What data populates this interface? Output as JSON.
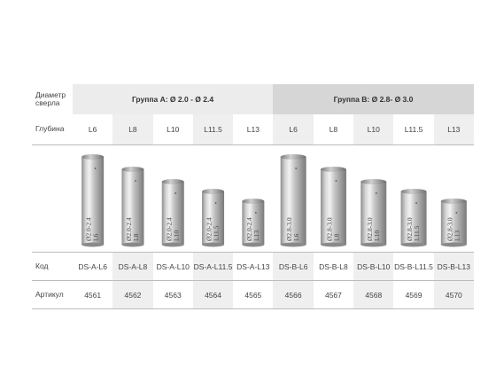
{
  "labels": {
    "diameter": "Диаметр сверла",
    "depth": "Глубина",
    "code": "Код",
    "article": "Артикул"
  },
  "groups": [
    {
      "title": "Группа А: Ø 2.0 - Ø 2.4"
    },
    {
      "title": "Группа В: Ø 2.8- Ø 3.0"
    }
  ],
  "depths": [
    "L6",
    "L8",
    "L10",
    "L11.5",
    "L13",
    "L6",
    "L8",
    "L10",
    "L11.5",
    "L13"
  ],
  "codes": [
    "DS-A-L6",
    "DS-A-L8",
    "DS-A-L10",
    "DS-A-L11.5",
    "DS-A-L13",
    "DS-B-L6",
    "DS-B-L8",
    "DS-B-L10",
    "DS-B-L11.5",
    "DS-B-L13"
  ],
  "articles": [
    "4561",
    "4562",
    "4563",
    "4564",
    "4565",
    "4566",
    "4567",
    "4568",
    "4569",
    "4570"
  ],
  "engravings": [
    {
      "d": "Ø2.0-2.4",
      "l": "L6"
    },
    {
      "d": "Ø2.0-2.4",
      "l": "L8"
    },
    {
      "d": "Ø2.0-2.4",
      "l": "L10"
    },
    {
      "d": "Ø2.0-2.4",
      "l": "L11.5"
    },
    {
      "d": "Ø2.0-2.4",
      "l": "L13"
    },
    {
      "d": "Ø2.8-3.0",
      "l": "L6"
    },
    {
      "d": "Ø2.8-3.0",
      "l": "L8"
    },
    {
      "d": "Ø2.8-3.0",
      "l": "L10"
    },
    {
      "d": "Ø2.8-3.0",
      "l": "L11.5"
    },
    {
      "d": "Ø2.8-3.0",
      "l": "L13"
    }
  ],
  "colors": {
    "header_a": "#ececec",
    "header_b": "#d6d6d6",
    "shade": "#efefef",
    "metal": "#a8a8a8"
  }
}
